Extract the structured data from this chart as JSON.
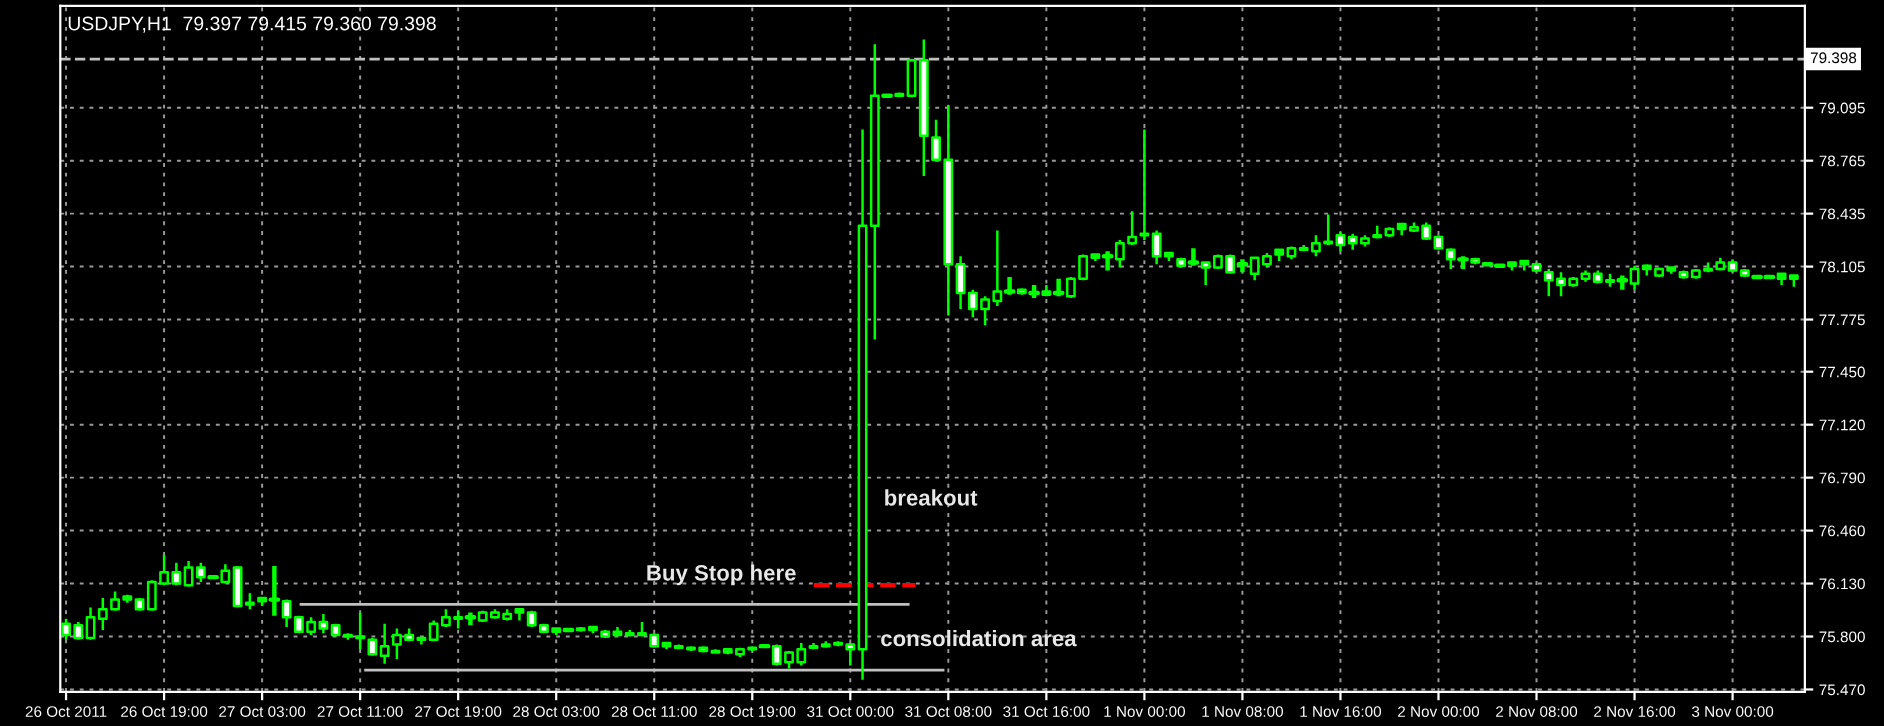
{
  "chart_data": {
    "type": "candlestick",
    "title": "USDJPY,H1  79.397 79.415 79.360 79.398",
    "categories": [
      "26 Oct 2011",
      null,
      null,
      null,
      null,
      null,
      null,
      null,
      "26 Oct 19:00",
      null,
      null,
      null,
      null,
      null,
      null,
      null,
      "27 Oct 03:00",
      null,
      null,
      null,
      null,
      null,
      null,
      null,
      "27 Oct 11:00",
      null,
      null,
      null,
      null,
      null,
      null,
      null,
      "27 Oct 19:00",
      null,
      null,
      null,
      null,
      null,
      null,
      null,
      "28 Oct 03:00",
      null,
      null,
      null,
      null,
      null,
      null,
      null,
      "28 Oct 11:00",
      null,
      null,
      null,
      null,
      null,
      null,
      null,
      "28 Oct 19:00",
      null,
      null,
      null,
      null,
      null,
      null,
      null,
      "31 Oct 00:00",
      null,
      null,
      null,
      null,
      null,
      null,
      null,
      "31 Oct 08:00",
      null,
      null,
      null,
      null,
      null,
      null,
      null,
      "31 Oct 16:00",
      null,
      null,
      null,
      null,
      null,
      null,
      null,
      "1 Nov 00:00",
      null,
      null,
      null,
      null,
      null,
      null,
      null,
      "1 Nov 08:00",
      null,
      null,
      null,
      null,
      null,
      null,
      null,
      "1 Nov 16:00",
      null,
      null,
      null,
      null,
      null,
      null,
      null,
      "2 Nov 00:00",
      null,
      null,
      null,
      null,
      null,
      null,
      null,
      "2 Nov 08:00",
      null,
      null,
      null,
      null,
      null,
      null,
      null,
      "2 Nov 16:00",
      null,
      null,
      null,
      null,
      null,
      null,
      null,
      "3 Nov 00:00",
      null,
      null,
      null,
      null,
      null
    ],
    "ohlc": [
      [
        75.88,
        75.91,
        75.78,
        75.81
      ],
      [
        75.87,
        75.89,
        75.78,
        75.79
      ],
      [
        75.79,
        75.98,
        75.78,
        75.92
      ],
      [
        75.91,
        76.04,
        75.84,
        75.97
      ],
      [
        75.97,
        76.08,
        75.96,
        76.03
      ],
      [
        76.03,
        76.06,
        76.01,
        76.05
      ],
      [
        76.03,
        76.04,
        75.96,
        75.97
      ],
      [
        75.97,
        76.15,
        75.96,
        76.14
      ],
      [
        76.13,
        76.31,
        76.12,
        76.2
      ],
      [
        76.2,
        76.26,
        76.12,
        76.13
      ],
      [
        76.12,
        76.27,
        76.11,
        76.23
      ],
      [
        76.23,
        76.26,
        76.14,
        76.17
      ],
      [
        76.17,
        76.18,
        76.16,
        76.17
      ],
      [
        76.14,
        76.25,
        76.13,
        76.21
      ],
      [
        76.23,
        76.24,
        75.98,
        75.99
      ],
      [
        76.0,
        76.07,
        75.97,
        76.01
      ],
      [
        76.02,
        76.04,
        75.99,
        76.04
      ],
      [
        76.03,
        76.24,
        75.93,
        76.03
      ],
      [
        76.02,
        76.03,
        75.86,
        75.92
      ],
      [
        75.92,
        75.93,
        75.82,
        75.83
      ],
      [
        75.83,
        75.92,
        75.81,
        75.89
      ],
      [
        75.89,
        75.94,
        75.82,
        75.85
      ],
      [
        75.87,
        75.88,
        75.8,
        75.81
      ],
      [
        75.81,
        75.82,
        75.78,
        75.8
      ],
      [
        75.79,
        75.95,
        75.72,
        75.8
      ],
      [
        75.78,
        75.79,
        75.68,
        75.69
      ],
      [
        75.68,
        75.88,
        75.63,
        75.74
      ],
      [
        75.75,
        75.85,
        75.66,
        75.81
      ],
      [
        75.81,
        75.85,
        75.77,
        75.78
      ],
      [
        75.79,
        75.8,
        75.75,
        75.78
      ],
      [
        75.78,
        75.9,
        75.77,
        75.88
      ],
      [
        75.87,
        75.97,
        75.86,
        75.92
      ],
      [
        75.91,
        75.96,
        75.85,
        75.92
      ],
      [
        75.92,
        75.95,
        75.87,
        75.92
      ],
      [
        75.9,
        75.96,
        75.89,
        75.95
      ],
      [
        75.92,
        75.97,
        75.91,
        75.95
      ],
      [
        75.91,
        75.97,
        75.9,
        75.94
      ],
      [
        75.95,
        75.97,
        75.9,
        75.97
      ],
      [
        75.95,
        75.96,
        75.86,
        75.87
      ],
      [
        75.87,
        75.88,
        75.82,
        75.83
      ],
      [
        75.83,
        75.85,
        75.81,
        75.85
      ],
      [
        75.84,
        75.85,
        75.83,
        75.84
      ],
      [
        75.85,
        75.86,
        75.83,
        75.84
      ],
      [
        75.84,
        75.86,
        75.82,
        75.86
      ],
      [
        75.83,
        75.84,
        75.79,
        75.8
      ],
      [
        75.81,
        75.86,
        75.8,
        75.83
      ],
      [
        75.81,
        75.84,
        75.8,
        75.82
      ],
      [
        75.82,
        75.89,
        75.8,
        75.81
      ],
      [
        75.81,
        75.82,
        75.73,
        75.74
      ],
      [
        75.74,
        75.76,
        75.72,
        75.76
      ],
      [
        75.74,
        75.75,
        75.72,
        75.73
      ],
      [
        75.73,
        75.74,
        75.71,
        75.72
      ],
      [
        75.73,
        75.74,
        75.7,
        75.71
      ],
      [
        75.71,
        75.72,
        75.7,
        75.7
      ],
      [
        75.7,
        75.72,
        75.69,
        75.72
      ],
      [
        75.69,
        75.73,
        75.67,
        75.72
      ],
      [
        75.72,
        75.74,
        75.71,
        75.73
      ],
      [
        75.74,
        75.75,
        75.73,
        75.74
      ],
      [
        75.74,
        75.75,
        75.62,
        75.63
      ],
      [
        75.64,
        75.71,
        75.6,
        75.7
      ],
      [
        75.64,
        75.76,
        75.62,
        75.72
      ],
      [
        75.73,
        75.76,
        75.72,
        75.74
      ],
      [
        75.74,
        75.77,
        75.73,
        75.75
      ],
      [
        75.75,
        75.77,
        75.74,
        75.76
      ],
      [
        75.75,
        75.76,
        75.62,
        75.72
      ],
      [
        75.72,
        78.96,
        75.53,
        78.36
      ],
      [
        78.36,
        79.49,
        77.65,
        79.17
      ],
      [
        79.17,
        79.18,
        79.16,
        79.17
      ],
      [
        79.17,
        79.19,
        79.16,
        79.18
      ],
      [
        79.17,
        79.4,
        79.16,
        79.39
      ],
      [
        79.39,
        79.52,
        78.67,
        78.92
      ],
      [
        78.91,
        79.02,
        78.76,
        78.77
      ],
      [
        78.77,
        79.11,
        77.8,
        78.12
      ],
      [
        78.12,
        78.17,
        77.84,
        77.94
      ],
      [
        77.94,
        77.96,
        77.79,
        77.84
      ],
      [
        77.84,
        77.92,
        77.74,
        77.9
      ],
      [
        77.89,
        78.33,
        77.86,
        77.95
      ],
      [
        77.95,
        78.04,
        77.93,
        77.95
      ],
      [
        77.96,
        77.97,
        77.93,
        77.94
      ],
      [
        77.94,
        77.99,
        77.91,
        77.94
      ],
      [
        77.93,
        77.99,
        77.92,
        77.95
      ],
      [
        77.94,
        78.03,
        77.92,
        77.94
      ],
      [
        77.92,
        78.04,
        77.91,
        78.03
      ],
      [
        78.03,
        78.18,
        78.02,
        78.17
      ],
      [
        78.16,
        78.18,
        78.14,
        78.18
      ],
      [
        78.17,
        78.2,
        78.08,
        78.17
      ],
      [
        78.15,
        78.27,
        78.1,
        78.25
      ],
      [
        78.25,
        78.45,
        78.24,
        78.29
      ],
      [
        78.3,
        78.96,
        78.27,
        78.31
      ],
      [
        78.31,
        78.33,
        78.12,
        78.17
      ],
      [
        78.17,
        78.19,
        78.14,
        78.19
      ],
      [
        78.15,
        78.16,
        78.1,
        78.11
      ],
      [
        78.13,
        78.22,
        78.11,
        78.13
      ],
      [
        78.13,
        78.13,
        77.99,
        78.1
      ],
      [
        78.1,
        78.18,
        78.09,
        78.17
      ],
      [
        78.17,
        78.18,
        78.06,
        78.07
      ],
      [
        78.12,
        78.15,
        78.07,
        78.12
      ],
      [
        78.06,
        78.16,
        78.02,
        78.16
      ],
      [
        78.12,
        78.19,
        78.1,
        78.17
      ],
      [
        78.18,
        78.21,
        78.14,
        78.21
      ],
      [
        78.17,
        78.23,
        78.15,
        78.22
      ],
      [
        78.21,
        78.24,
        78.2,
        78.22
      ],
      [
        78.2,
        78.3,
        78.17,
        78.25
      ],
      [
        78.25,
        78.43,
        78.24,
        78.26
      ],
      [
        78.3,
        78.32,
        78.2,
        78.24
      ],
      [
        78.29,
        78.31,
        78.21,
        78.25
      ],
      [
        78.25,
        78.3,
        78.23,
        78.28
      ],
      [
        78.29,
        78.36,
        78.28,
        78.3
      ],
      [
        78.3,
        78.35,
        78.29,
        78.34
      ],
      [
        78.34,
        78.37,
        78.3,
        78.37
      ],
      [
        78.33,
        78.38,
        78.32,
        78.35
      ],
      [
        78.36,
        78.38,
        78.27,
        78.28
      ],
      [
        78.29,
        78.3,
        78.21,
        78.22
      ],
      [
        78.21,
        78.22,
        78.09,
        78.15
      ],
      [
        78.15,
        78.17,
        78.09,
        78.15
      ],
      [
        78.15,
        78.16,
        78.12,
        78.13
      ],
      [
        78.12,
        78.13,
        78.11,
        78.12
      ],
      [
        78.11,
        78.12,
        78.1,
        78.11
      ],
      [
        78.11,
        78.13,
        78.08,
        78.13
      ],
      [
        78.12,
        78.14,
        78.08,
        78.14
      ],
      [
        78.12,
        78.13,
        78.07,
        78.08
      ],
      [
        78.07,
        78.09,
        77.92,
        78.02
      ],
      [
        78.03,
        78.07,
        77.92,
        77.99
      ],
      [
        77.99,
        78.04,
        77.98,
        78.03
      ],
      [
        78.03,
        78.08,
        78.01,
        78.06
      ],
      [
        78.06,
        78.08,
        78.0,
        78.01
      ],
      [
        78.01,
        78.06,
        77.98,
        78.02
      ],
      [
        78.02,
        78.05,
        77.96,
        78.02
      ],
      [
        78.0,
        78.11,
        77.96,
        78.09
      ],
      [
        78.09,
        78.12,
        78.05,
        78.11
      ],
      [
        78.05,
        78.1,
        78.04,
        78.09
      ],
      [
        78.08,
        78.1,
        78.06,
        78.1
      ],
      [
        78.07,
        78.08,
        78.03,
        78.04
      ],
      [
        78.04,
        78.09,
        78.03,
        78.08
      ],
      [
        78.08,
        78.13,
        78.07,
        78.09
      ],
      [
        78.09,
        78.16,
        78.08,
        78.13
      ],
      [
        78.13,
        78.15,
        78.07,
        78.08
      ],
      [
        78.08,
        78.09,
        78.04,
        78.05
      ],
      [
        78.04,
        78.05,
        78.03,
        78.04
      ],
      [
        78.04,
        78.05,
        78.03,
        78.04
      ],
      [
        78.03,
        78.06,
        77.99,
        78.06
      ],
      [
        78.03,
        78.05,
        77.98,
        78.05
      ]
    ],
    "color": "#00ff00",
    "colors": [
      "#ffffff",
      "#ffffff",
      "#000000",
      "#000000",
      "#000000",
      "#00ff00",
      "#ffffff",
      "#000000",
      "#000000",
      "#ffffff",
      "#000000",
      "#ffffff",
      "#00ff00",
      "#000000",
      "#ffffff",
      "#000000",
      "#00ff00",
      "#00ff00",
      "#ffffff",
      "#ffffff",
      "#000000",
      "#ffffff",
      "#ffffff",
      "#ffffff",
      "#000000",
      "#ffffff",
      "#000000",
      "#000000",
      "#ffffff",
      "#ffffff",
      "#000000",
      "#000000",
      "#000000",
      "#00ff00",
      "#000000",
      "#000000",
      "#000000",
      "#00ff00",
      "#ffffff",
      "#ffffff",
      "#00ff00",
      "#00ff00",
      "#ffffff",
      "#00ff00",
      "#ffffff",
      "#00ff00",
      "#000000",
      "#ffffff",
      "#ffffff",
      "#00ff00",
      "#ffffff",
      "#ffffff",
      "#ffffff",
      "#ffffff",
      "#00ff00",
      "#000000",
      "#000000",
      "#00ff00",
      "#ffffff",
      "#000000",
      "#000000",
      "#000000",
      "#000000",
      "#000000",
      "#ffffff",
      "#000000",
      "#000000",
      "#00ff00",
      "#000000",
      "#000000",
      "#ffffff",
      "#ffffff",
      "#ffffff",
      "#ffffff",
      "#ffffff",
      "#000000",
      "#000000",
      "#00ff00",
      "#ffffff",
      "#00ff00",
      "#00ff00",
      "#00ff00",
      "#000000",
      "#000000",
      "#00ff00",
      "#00ff00",
      "#000000",
      "#000000",
      "#000000",
      "#ffffff",
      "#00ff00",
      "#ffffff",
      "#00ff00",
      "#ffffff",
      "#000000",
      "#ffffff",
      "#00ff00",
      "#000000",
      "#000000",
      "#00ff00",
      "#000000",
      "#000000",
      "#000000",
      "#000000",
      "#ffffff",
      "#ffffff",
      "#000000",
      "#000000",
      "#000000",
      "#00ff00",
      "#000000",
      "#ffffff",
      "#ffffff",
      "#ffffff",
      "#00ff00",
      "#ffffff",
      "#00ff00",
      "#00ff00",
      "#00ff00",
      "#00ff00",
      "#ffffff",
      "#ffffff",
      "#ffffff",
      "#000000",
      "#000000",
      "#ffffff",
      "#000000",
      "#00ff00",
      "#000000",
      "#00ff00",
      "#000000",
      "#00ff00",
      "#ffffff",
      "#000000",
      "#000000",
      "#000000",
      "#ffffff",
      "#ffffff",
      "#00ff00",
      "#00ff00",
      "#00ff00",
      "#00ff00"
    ],
    "ylim": [
      75.455,
      79.73
    ],
    "yticks": [
      {
        "value": 75.47,
        "label": "75.470"
      },
      {
        "value": 75.8,
        "label": "75.800"
      },
      {
        "value": 76.13,
        "label": "76.130"
      },
      {
        "value": 76.46,
        "label": "76.460"
      },
      {
        "value": 76.79,
        "label": "76.790"
      },
      {
        "value": 77.12,
        "label": "77.120"
      },
      {
        "value": 77.45,
        "label": "77.450"
      },
      77.775,
      78.105,
      78.435,
      78.765,
      79.095
    ],
    "ref_lines": [
      {
        "axis": "y",
        "value": 79.398,
        "label": "79.398",
        "color": "#c0c0c0",
        "line_style": "dashed"
      },
      {
        "axis": "y",
        "value": 76.0,
        "label": null,
        "color": "#c0c0c0",
        "line_style": "solid"
      },
      {
        "axis": "y",
        "value": 75.59,
        "label": null,
        "color": "#c0c0c0",
        "line_style": "solid"
      },
      {
        "axis": "y",
        "value": 76.12,
        "label": "Buy Stop here",
        "color": "#ff0000",
        "line_style": "dashed"
      }
    ],
    "annotations": [
      "breakout",
      "consolidation area"
    ],
    "grid": true
  }
}
